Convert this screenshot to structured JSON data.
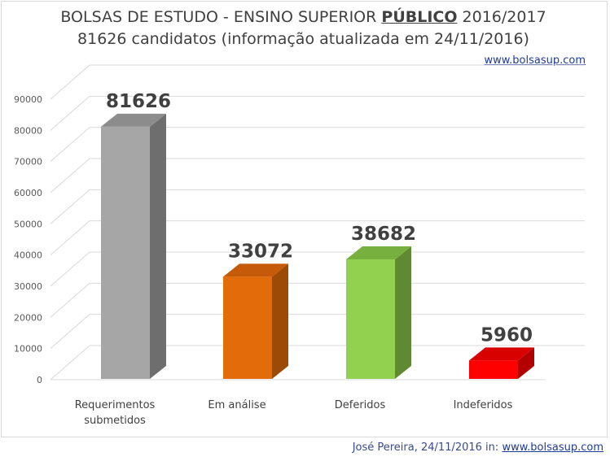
{
  "header": {
    "title_prefix": "BOLSAS DE ESTUDO - ENSINO SUPERIOR",
    "title_emphasis": "PÚBLICO",
    "title_suffix": "2016/2017",
    "subtitle": "81626 candidatos (informação atualizada em 24/11/2016)",
    "website": "www.bolsasup.com"
  },
  "footer": {
    "credit": "José Pereira, 24/11/2016 in:",
    "link": "www.bolsasup.com"
  },
  "chart_data": {
    "type": "bar",
    "categories": [
      [
        "Requerimentos",
        "submetidos"
      ],
      [
        "Em análise"
      ],
      [
        "Deferidos"
      ],
      [
        "Indeferidos"
      ]
    ],
    "values": [
      81626,
      33072,
      38682,
      5960
    ],
    "data_labels": [
      "81626",
      "33072",
      "38682",
      "5960"
    ],
    "ylim": [
      0,
      90000
    ],
    "yticks": [
      0,
      10000,
      20000,
      30000,
      40000,
      50000,
      60000,
      70000,
      80000,
      90000
    ],
    "grid": true,
    "style": "3d-column",
    "colors": [
      {
        "front": "#a6a6a6",
        "side": "#6e6e6e",
        "top": "#8c8c8c"
      },
      {
        "front": "#e36c0a",
        "side": "#9c4a06",
        "top": "#c55a08"
      },
      {
        "front": "#92d050",
        "side": "#5f8a32",
        "top": "#78b040"
      },
      {
        "front": "#ff0000",
        "side": "#b30000",
        "top": "#d90000"
      }
    ]
  }
}
